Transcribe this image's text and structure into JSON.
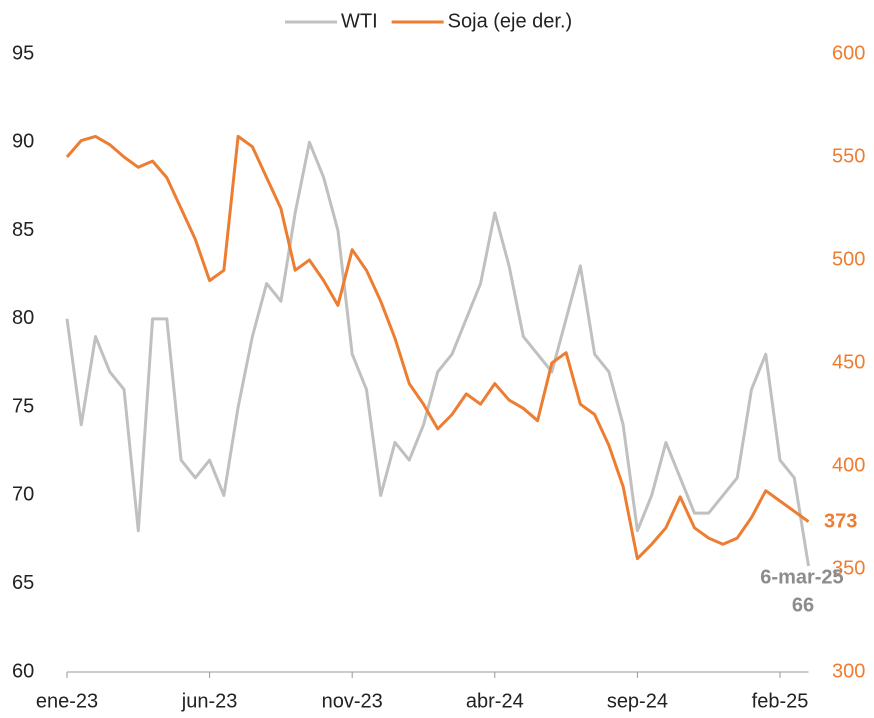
{
  "chart_data": {
    "type": "line",
    "categories": [
      "ene-23",
      null,
      null,
      null,
      null,
      null,
      null,
      null,
      null,
      null,
      "jun-23",
      null,
      null,
      null,
      null,
      null,
      null,
      null,
      null,
      null,
      "nov-23",
      null,
      null,
      null,
      null,
      null,
      null,
      null,
      null,
      null,
      "abr-24",
      null,
      null,
      null,
      null,
      null,
      null,
      null,
      null,
      null,
      "sep-24",
      null,
      null,
      null,
      null,
      null,
      null,
      null,
      null,
      null,
      "feb-25",
      null,
      null
    ],
    "series": [
      {
        "name": "WTI",
        "color": "#c0c0c0",
        "values": [
          80,
          74,
          79,
          77,
          76,
          68,
          80,
          80,
          72,
          71,
          72,
          70,
          75,
          79,
          82,
          81,
          86,
          90,
          88,
          85,
          78,
          76,
          70,
          73,
          72,
          74,
          77,
          78,
          80,
          82,
          86,
          83,
          79,
          78,
          77,
          80,
          83,
          78,
          77,
          74,
          68,
          70,
          73,
          71,
          69,
          69,
          70,
          71,
          76,
          78,
          72,
          71,
          66
        ]
      },
      {
        "name": "Soja (eje der.)",
        "color": "#ed7d31",
        "axis": "y2",
        "values": [
          550,
          558,
          560,
          556,
          550,
          545,
          548,
          540,
          525,
          510,
          490,
          495,
          560,
          555,
          540,
          525,
          495,
          500,
          490,
          478,
          505,
          495,
          480,
          462,
          440,
          430,
          418,
          425,
          435,
          430,
          440,
          432,
          428,
          422,
          450,
          455,
          430,
          425,
          410,
          390,
          355,
          362,
          370,
          385,
          370,
          365,
          362,
          365,
          375,
          388,
          383,
          378,
          373
        ]
      }
    ],
    "ylim": [
      60,
      95
    ],
    "yticks": [
      60,
      65,
      70,
      75,
      80,
      85,
      90,
      95
    ],
    "y2lim": [
      300,
      600
    ],
    "y2ticks": [
      300,
      350,
      400,
      450,
      500,
      550,
      600
    ],
    "annotations": [
      "6-mar-25"
    ],
    "legend": "top"
  }
}
